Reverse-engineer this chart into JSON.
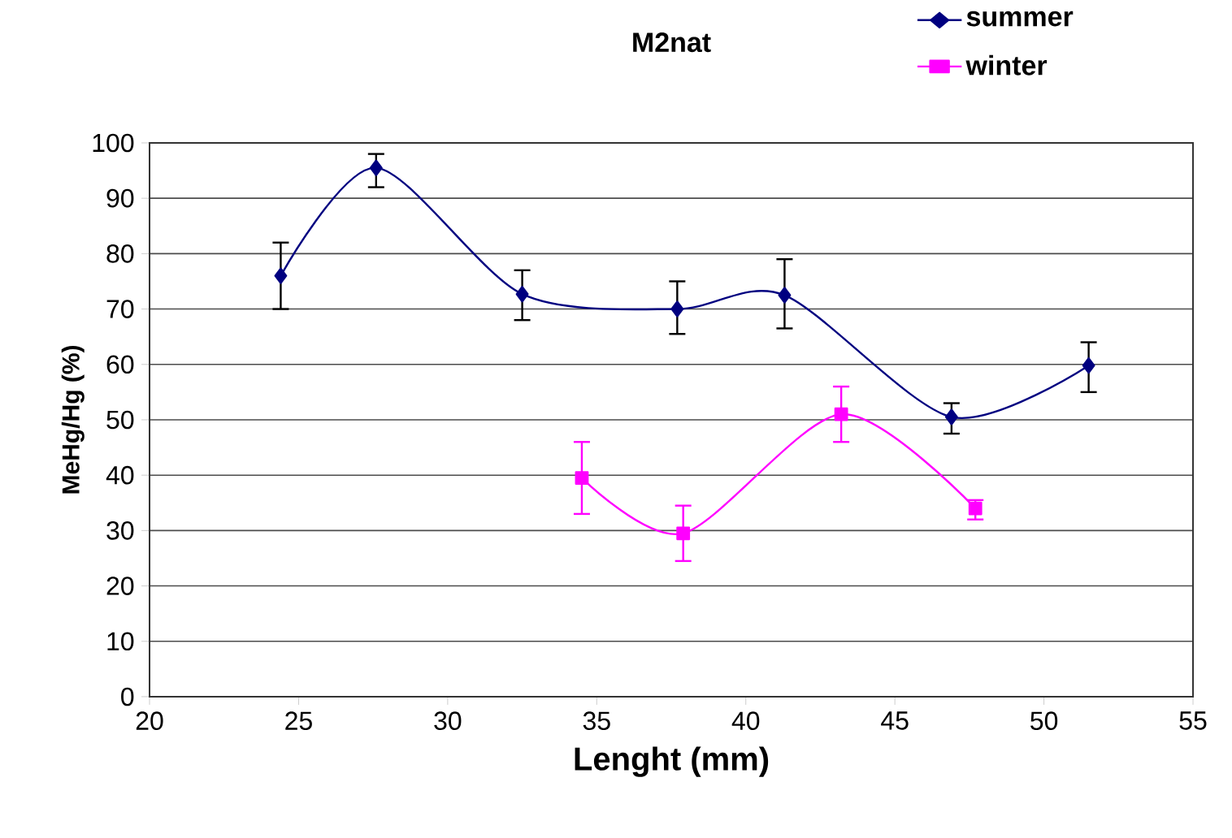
{
  "chart_data": {
    "type": "line",
    "title": "M2nat",
    "xlabel": "Lenght (mm)",
    "ylabel": "MeHg/Hg (%)",
    "xlim": [
      20,
      55
    ],
    "xticks": [
      20,
      25,
      30,
      35,
      40,
      45,
      50,
      55
    ],
    "ylim": [
      0,
      100
    ],
    "yticks": [
      0,
      10,
      20,
      30,
      40,
      50,
      60,
      70,
      80,
      90,
      100
    ],
    "grid": "y",
    "legend": "top right",
    "series": [
      {
        "name": "summer",
        "color": "#000080",
        "marker": "diamond",
        "x": [
          24.4,
          27.6,
          32.5,
          37.7,
          41.3,
          46.9,
          51.5
        ],
        "values": [
          76,
          95.5,
          72.7,
          70,
          72.5,
          50.5,
          59.8
        ],
        "errors": [
          [
            70,
            82
          ],
          [
            92,
            98
          ],
          [
            68,
            77
          ],
          [
            65.5,
            75
          ],
          [
            66.5,
            79
          ],
          [
            47.5,
            53
          ],
          [
            55,
            64
          ]
        ]
      },
      {
        "name": "winter",
        "color": "#ff00ff",
        "marker": "square",
        "x": [
          34.5,
          37.9,
          43.2,
          47.7
        ],
        "values": [
          39.5,
          29.5,
          51,
          34
        ],
        "errors": [
          [
            33,
            46
          ],
          [
            24.5,
            34.5
          ],
          [
            46,
            56
          ],
          [
            32,
            35.5
          ]
        ]
      }
    ]
  }
}
